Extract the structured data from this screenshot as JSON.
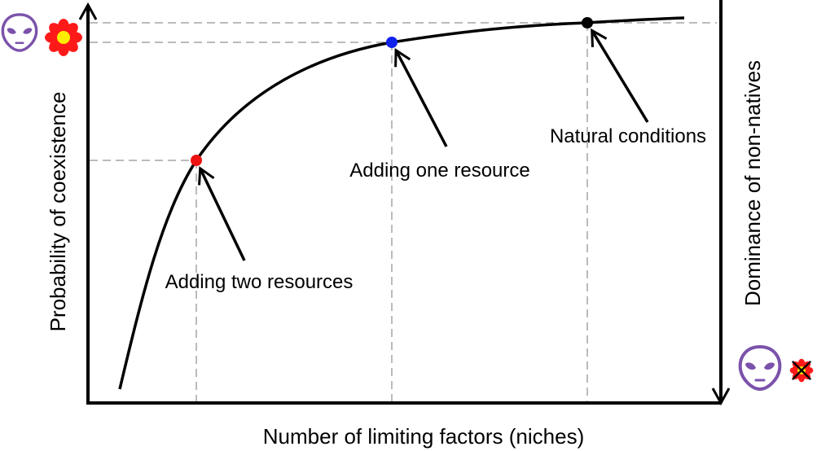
{
  "chart_data": {
    "type": "line",
    "xlabel": "Number of limiting factors (niches)",
    "ylabel": "Probability of coexistence",
    "y2label": "Dominance of non-natives",
    "grid": false,
    "points": [
      {
        "label": "Adding two resources",
        "color": "#ee1111"
      },
      {
        "label": "Adding one resource",
        "color": "#1122ee"
      },
      {
        "label": "Natural conditions",
        "color": "#000000"
      }
    ],
    "icons": {
      "top_left": [
        "alien-icon",
        "flower-icon"
      ],
      "bottom_right": [
        "alien-icon",
        "crossed-out-flower-icon"
      ]
    },
    "colors": {
      "alien": "#7b52ab",
      "petal": "#ff1a1a",
      "flower_center": "#ffee00",
      "guides": "#bbbbbb"
    }
  }
}
